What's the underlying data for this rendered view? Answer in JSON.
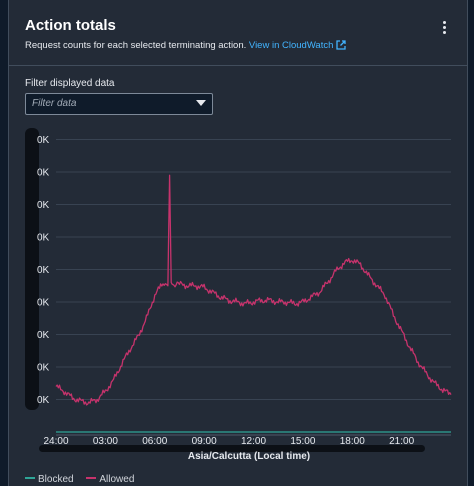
{
  "panel": {
    "title": "Action totals",
    "description": "Request counts for each selected terminating action.",
    "link_text": "View in CloudWatch",
    "menu_icon": "vertical-ellipsis-icon",
    "external_icon": "external-link-icon"
  },
  "filter": {
    "label": "Filter displayed data",
    "placeholder": "Filter data",
    "dropdown_icon": "caret-down-icon"
  },
  "colors": {
    "allowed": "#c6336c",
    "blocked": "#2ea597",
    "background": "#232b37",
    "link": "#42b4ff"
  },
  "chart_data": {
    "type": "line",
    "xlabel": "Asia/Calcutta (Local time)",
    "x_ticks": [
      "24:00",
      "03:00",
      "06:00",
      "09:00",
      "12:00",
      "15:00",
      "18:00",
      "21:00"
    ],
    "y_tick_labels": [
      "0K",
      "0K",
      "0K",
      "0K",
      "0K",
      "0K",
      "0K",
      "0K",
      "0K"
    ],
    "y_tick_values": [
      9,
      8,
      7,
      6,
      5,
      4,
      3,
      2,
      1
    ],
    "ylim": [
      0,
      9.6
    ],
    "grid": true,
    "legend_position": "bottom",
    "series": [
      {
        "name": "Blocked",
        "color": "#2ea597",
        "x": [
          0,
          24
        ],
        "values": [
          0,
          0
        ]
      },
      {
        "name": "Allowed",
        "color": "#c6336c",
        "x": [
          0,
          0.5,
          1,
          1.5,
          2,
          2.5,
          3,
          3.5,
          4,
          4.5,
          5,
          5.5,
          6,
          6.5,
          6.8,
          6.9,
          7,
          7.1,
          7.5,
          8,
          8.5,
          9,
          9.5,
          10,
          10.5,
          11,
          11.5,
          12,
          12.5,
          13,
          13.5,
          14,
          14.5,
          15,
          15.5,
          16,
          16.5,
          17,
          17.5,
          18,
          18.5,
          19,
          19.5,
          20,
          20.5,
          21,
          21.5,
          22,
          22.5,
          23,
          23.5,
          24
        ],
        "values": [
          1.4,
          1.25,
          1.05,
          0.95,
          0.9,
          1.0,
          1.25,
          1.6,
          2.1,
          2.55,
          2.95,
          3.5,
          4.2,
          4.6,
          4.5,
          7.9,
          4.6,
          4.5,
          4.55,
          4.5,
          4.5,
          4.45,
          4.3,
          4.15,
          4.05,
          4.0,
          3.95,
          4.0,
          4.05,
          4.05,
          4.0,
          4.0,
          3.95,
          4.0,
          4.15,
          4.3,
          4.6,
          4.95,
          5.2,
          5.3,
          5.15,
          4.8,
          4.5,
          4.2,
          3.6,
          3.1,
          2.6,
          2.15,
          1.8,
          1.5,
          1.3,
          1.15
        ]
      }
    ]
  },
  "legend": [
    {
      "label": "Blocked",
      "color": "#2ea597"
    },
    {
      "label": "Allowed",
      "color": "#c6336c"
    }
  ]
}
